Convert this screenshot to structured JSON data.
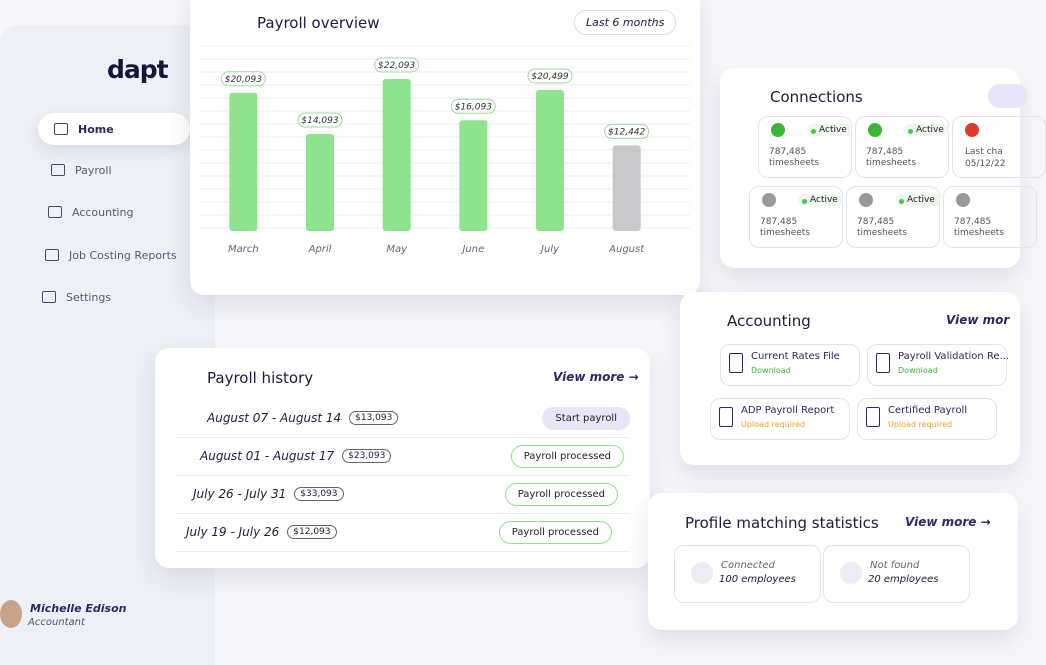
{
  "sidebar": {
    "logo": "dapt",
    "nav": [
      "Home",
      "Payroll",
      "Accounting",
      "Job Costing Reports",
      "Settings"
    ],
    "user": {
      "name": "Michelle Edison",
      "role": "Accountant"
    }
  },
  "chart_data": {
    "type": "bar",
    "title": "Payroll overview",
    "filter": "Last 6 months",
    "categories": [
      "March",
      "April",
      "May",
      "June",
      "July",
      "August"
    ],
    "values": [
      20093,
      14093,
      22093,
      16093,
      20499,
      12442
    ],
    "value_labels": [
      "$20,093",
      "$14,093",
      "$22,093",
      "$16,093",
      "$20,499",
      "$12,442"
    ],
    "colors": [
      "#8ee48e",
      "#8ee48e",
      "#8ee48e",
      "#8ee48e",
      "#8ee48e",
      "#c9c9cc"
    ]
  },
  "payroll_history": {
    "title": "Payroll history",
    "view_more": "View more →",
    "rows": [
      {
        "period": "August 07 - August 14",
        "amount": "$13,093",
        "status": "Start payroll"
      },
      {
        "period": "August 01 - August 17",
        "amount": "$23,093",
        "status": "Payroll processed"
      },
      {
        "period": "July 26 - July 31",
        "amount": "$33,093",
        "status": "Payroll processed"
      },
      {
        "period": "July 19 - July 26",
        "amount": "$12,093",
        "status": "Payroll processed"
      }
    ]
  },
  "connections": {
    "title": "Connections",
    "tiles": [
      {
        "status": "Active",
        "count": "787,485",
        "unit": "timesheets"
      },
      {
        "status": "Active",
        "count": "787,485",
        "unit": "timesheets"
      },
      {
        "note": "Last cha",
        "date": "05/12/22"
      },
      {
        "status": "Active",
        "count": "787,485",
        "unit": "timesheets"
      },
      {
        "status": "Active",
        "count": "787,485",
        "unit": "timesheets"
      },
      {
        "count": "787,485",
        "unit": "timesheets"
      }
    ]
  },
  "accounting": {
    "title": "Accounting",
    "view_more": "View mor",
    "files": [
      {
        "name": "Current Rates File",
        "action": "Download"
      },
      {
        "name": "Payroll Validation Re...",
        "action": "Download"
      },
      {
        "name": "ADP Payroll Report",
        "action": "Upload required"
      },
      {
        "name": "Certified Payroll",
        "action": "Upload required"
      }
    ]
  },
  "profile_matching": {
    "title": "Profile matching statistics",
    "view_more": "View more →",
    "stats": [
      {
        "label": "Connected",
        "value": "100 employees"
      },
      {
        "label": "Not found",
        "value": "20 employees"
      }
    ]
  }
}
